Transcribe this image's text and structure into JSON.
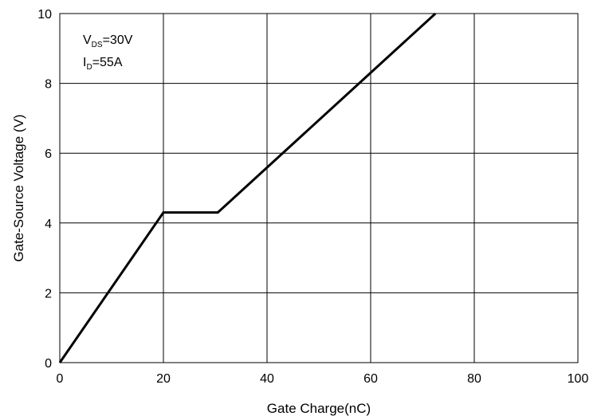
{
  "chart_data": {
    "type": "line",
    "title": "",
    "xlabel": "Gate Charge(nC)",
    "ylabel": "Gate-Source Voltage (V)",
    "xlim": [
      0,
      100
    ],
    "ylim": [
      0,
      10
    ],
    "xticks": [
      0,
      20,
      40,
      60,
      80,
      100
    ],
    "yticks": [
      0,
      2,
      4,
      6,
      8,
      10
    ],
    "x_tick_labels": [
      "0",
      "20",
      "40",
      "60",
      "80",
      "100"
    ],
    "y_tick_labels": [
      "0",
      "2",
      "4",
      "6",
      "8",
      "10"
    ],
    "grid": true,
    "series": [
      {
        "x": [
          0,
          20,
          30.5,
          72.5
        ],
        "y": [
          0,
          4.3,
          4.3,
          10.0
        ],
        "color": "#000000"
      }
    ],
    "annotations": {
      "vds": {
        "main": "V",
        "sub": "DS",
        "rest": "=30V"
      },
      "id": {
        "main": "I",
        "sub": "D",
        "rest": "=55A"
      }
    }
  }
}
